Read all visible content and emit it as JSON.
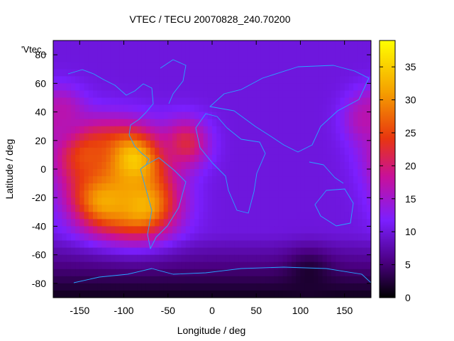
{
  "chart_data": {
    "type": "heatmap",
    "title": "VTEC / TECU 20070828_240.70200",
    "xlabel": "Longitude / deg",
    "ylabel": "Latitude / deg",
    "legend_key": "'Vtec_",
    "xlim": [
      -180,
      180
    ],
    "ylim": [
      -90,
      90
    ],
    "x_ticks": [
      -150,
      -100,
      -50,
      0,
      50,
      100,
      150
    ],
    "y_ticks": [
      -80,
      -60,
      -40,
      -20,
      0,
      20,
      40,
      60,
      80
    ],
    "colorbar": {
      "range": [
        0,
        39
      ],
      "ticks": [
        0,
        5,
        10,
        15,
        20,
        25,
        30,
        35
      ],
      "palette": [
        "#000000",
        "#4b0082",
        "#7b1fff",
        "#c8109a",
        "#e8360f",
        "#f5a000",
        "#ffff00"
      ]
    },
    "grid": "off",
    "colormap_features": [
      {
        "lon": -95,
        "lat": 5,
        "vtec": 39
      },
      {
        "lon": -120,
        "lat": -20,
        "vtec": 33
      },
      {
        "lon": -80,
        "lat": -25,
        "vtec": 33
      },
      {
        "lon": -140,
        "lat": 10,
        "vtec": 26
      },
      {
        "lon": -30,
        "lat": 18,
        "vtec": 22
      },
      {
        "lon": -170,
        "lat": 40,
        "vtec": 17
      },
      {
        "lon": 175,
        "lat": 35,
        "vtec": 17
      },
      {
        "lon": 110,
        "lat": -75,
        "vtec": 2
      }
    ]
  }
}
